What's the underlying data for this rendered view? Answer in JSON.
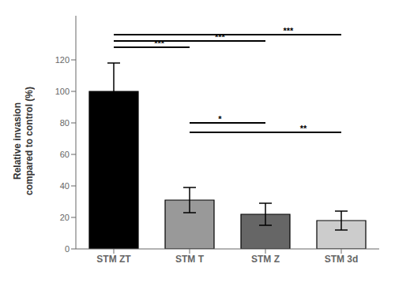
{
  "chart_data": {
    "type": "bar",
    "categories": [
      "STM ZT",
      "STM T",
      "STM Z",
      "STM 3d"
    ],
    "values": [
      100,
      31,
      22,
      18
    ],
    "errors": [
      18,
      8,
      7,
      6
    ],
    "colors": [
      "#000000",
      "#999999",
      "#666666",
      "#cccccc"
    ],
    "ylabel": "Relative invasion\ncompared to control (%)",
    "ylim": [
      0,
      148
    ],
    "yticks": [
      0,
      20,
      40,
      60,
      80,
      100,
      120
    ],
    "grid": false,
    "annotations": [
      {
        "label": "***",
        "from": "STM ZT",
        "to": "STM T",
        "y": 128
      },
      {
        "label": "***",
        "from": "STM ZT",
        "to": "STM Z",
        "y": 132
      },
      {
        "label": "***",
        "from": "STM ZT",
        "to": "STM 3d",
        "y": 136
      },
      {
        "label": "*",
        "from": "STM T",
        "to": "STM Z",
        "y": 80
      },
      {
        "label": "**",
        "from": "STM T",
        "to": "STM 3d",
        "y": 74
      }
    ]
  }
}
